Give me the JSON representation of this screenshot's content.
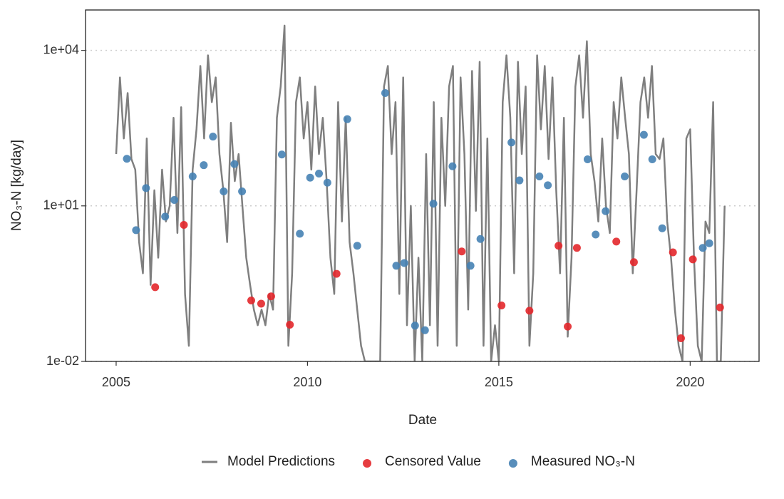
{
  "chart_data": {
    "type": "line",
    "x_label": "Date",
    "y_label": "NO₃-N [kg/day]",
    "y_log": true,
    "grid": true,
    "legend_position": "bottom",
    "xlim": [
      2004.2,
      2021.8
    ],
    "xticks": [
      2005,
      2010,
      2015,
      2020
    ],
    "ylim": [
      0.01,
      60000
    ],
    "yticks": [
      {
        "value": 0.01,
        "label": "1e-02"
      },
      {
        "value": 10,
        "label": "1e+01"
      },
      {
        "value": 10000,
        "label": "1e+04"
      }
    ],
    "series": [
      {
        "name": "Model Predictions",
        "type": "line",
        "color": "#7f7f7f",
        "x": [
          2005.0,
          2005.1,
          2005.2,
          2005.3,
          2005.4,
          2005.5,
          2005.6,
          2005.7,
          2005.8,
          2005.9,
          2006.0,
          2006.1,
          2006.2,
          2006.3,
          2006.4,
          2006.5,
          2006.6,
          2006.7,
          2006.8,
          2006.9,
          2007.0,
          2007.1,
          2007.2,
          2007.3,
          2007.4,
          2007.5,
          2007.6,
          2007.7,
          2007.8,
          2007.9,
          2008.0,
          2008.1,
          2008.2,
          2008.3,
          2008.4,
          2008.5,
          2008.6,
          2008.7,
          2008.8,
          2008.9,
          2009.0,
          2009.1,
          2009.2,
          2009.3,
          2009.4,
          2009.5,
          2009.6,
          2009.7,
          2009.8,
          2009.9,
          2010.0,
          2010.1,
          2010.2,
          2010.3,
          2010.4,
          2010.5,
          2010.6,
          2010.7,
          2010.8,
          2010.9,
          2011.0,
          2011.1,
          2011.2,
          2011.3,
          2011.4,
          2011.5,
          2011.6,
          2011.7,
          2011.8,
          2011.9,
          2012.0,
          2012.1,
          2012.2,
          2012.3,
          2012.4,
          2012.5,
          2012.6,
          2012.7,
          2012.8,
          2012.9,
          2013.0,
          2013.1,
          2013.2,
          2013.3,
          2013.4,
          2013.5,
          2013.6,
          2013.7,
          2013.8,
          2013.9,
          2014.0,
          2014.1,
          2014.2,
          2014.3,
          2014.4,
          2014.5,
          2014.6,
          2014.7,
          2014.8,
          2014.9,
          2015.0,
          2015.1,
          2015.2,
          2015.3,
          2015.4,
          2015.5,
          2015.6,
          2015.7,
          2015.8,
          2015.9,
          2016.0,
          2016.1,
          2016.2,
          2016.3,
          2016.4,
          2016.5,
          2016.6,
          2016.7,
          2016.8,
          2016.9,
          2017.0,
          2017.1,
          2017.2,
          2017.3,
          2017.4,
          2017.5,
          2017.6,
          2017.7,
          2017.8,
          2017.9,
          2018.0,
          2018.1,
          2018.2,
          2018.3,
          2018.4,
          2018.5,
          2018.6,
          2018.7,
          2018.8,
          2018.9,
          2019.0,
          2019.1,
          2019.2,
          2019.3,
          2019.4,
          2019.5,
          2019.6,
          2019.7,
          2019.8,
          2019.9,
          2020.0,
          2020.1,
          2020.2,
          2020.3,
          2020.4,
          2020.5,
          2020.6,
          2020.7,
          2020.8,
          2020.9
        ],
        "values": [
          100,
          3000,
          200,
          1500,
          80,
          50,
          2,
          0.5,
          200,
          0.3,
          20,
          1,
          50,
          5,
          10,
          500,
          3,
          800,
          0.2,
          0.02,
          50,
          300,
          5000,
          200,
          8000,
          1000,
          3000,
          100,
          20,
          2,
          400,
          30,
          100,
          10,
          1,
          0.3,
          0.1,
          0.05,
          0.1,
          0.05,
          0.2,
          0.1,
          500,
          2000,
          30000,
          0.02,
          0.5,
          1000,
          3000,
          200,
          1000,
          50,
          2000,
          100,
          500,
          30,
          1,
          0.2,
          1000,
          5,
          500,
          2,
          0.5,
          0.1,
          0.02,
          0.01,
          0.01,
          0.01,
          0.01,
          0.01,
          2000,
          5000,
          100,
          1000,
          0.2,
          3000,
          0.05,
          10,
          0.01,
          1,
          0.01,
          100,
          0.05,
          1000,
          0.02,
          500,
          10,
          2000,
          5000,
          0.02,
          3000,
          100,
          0.1,
          4000,
          8,
          6000,
          0.02,
          200,
          0.01,
          0.05,
          0.01,
          1000,
          8000,
          500,
          0.5,
          6000,
          100,
          2000,
          0.02,
          0.5,
          8000,
          300,
          5000,
          80,
          3000,
          20,
          0.5,
          500,
          0.03,
          1,
          2000,
          8000,
          500,
          15000,
          100,
          30,
          5,
          200,
          10,
          3,
          1000,
          200,
          3000,
          500,
          100,
          0.5,
          20,
          1000,
          3000,
          500,
          5000,
          100,
          80,
          200,
          5,
          1,
          0.1,
          0.02,
          0.01,
          200,
          300,
          1,
          0.02,
          0.01,
          5,
          3,
          1000,
          0.01,
          0.01,
          10
        ]
      },
      {
        "name": "Censored Value",
        "type": "scatter",
        "color": "#e3272b",
        "x": [
          2006.02,
          2006.77,
          2008.53,
          2008.79,
          2009.05,
          2009.54,
          2010.76,
          2014.03,
          2015.07,
          2015.8,
          2016.56,
          2016.8,
          2017.04,
          2018.07,
          2018.53,
          2019.55,
          2019.76,
          2020.07,
          2020.78
        ],
        "values": [
          0.27,
          4.3,
          0.15,
          0.13,
          0.18,
          0.051,
          0.49,
          1.32,
          0.12,
          0.095,
          1.7,
          0.047,
          1.55,
          2.05,
          0.82,
          1.27,
          0.028,
          0.93,
          0.11
        ]
      },
      {
        "name": "Measured NO₃-N",
        "type": "scatter",
        "color": "#4682b4",
        "x": [
          2005.28,
          2005.52,
          2005.78,
          2006.28,
          2006.52,
          2007.0,
          2007.29,
          2007.53,
          2007.81,
          2008.09,
          2008.29,
          2009.33,
          2009.8,
          2010.07,
          2010.3,
          2010.52,
          2011.04,
          2011.3,
          2012.03,
          2012.32,
          2012.53,
          2012.81,
          2013.07,
          2013.29,
          2013.79,
          2014.26,
          2014.52,
          2015.33,
          2015.54,
          2016.06,
          2016.28,
          2017.32,
          2017.53,
          2017.79,
          2018.29,
          2018.79,
          2019.01,
          2019.27,
          2020.33,
          2020.5
        ],
        "values": [
          81,
          3.4,
          22,
          6.2,
          13,
          37,
          61,
          217,
          19,
          64,
          19,
          98,
          2.9,
          35,
          42,
          28,
          470,
          1.7,
          1500,
          0.7,
          0.79,
          0.049,
          0.04,
          11,
          58,
          0.7,
          2.3,
          167,
          31,
          37,
          25,
          79,
          2.8,
          7.9,
          37,
          235,
          79,
          3.7,
          1.55,
          1.9
        ]
      }
    ]
  }
}
